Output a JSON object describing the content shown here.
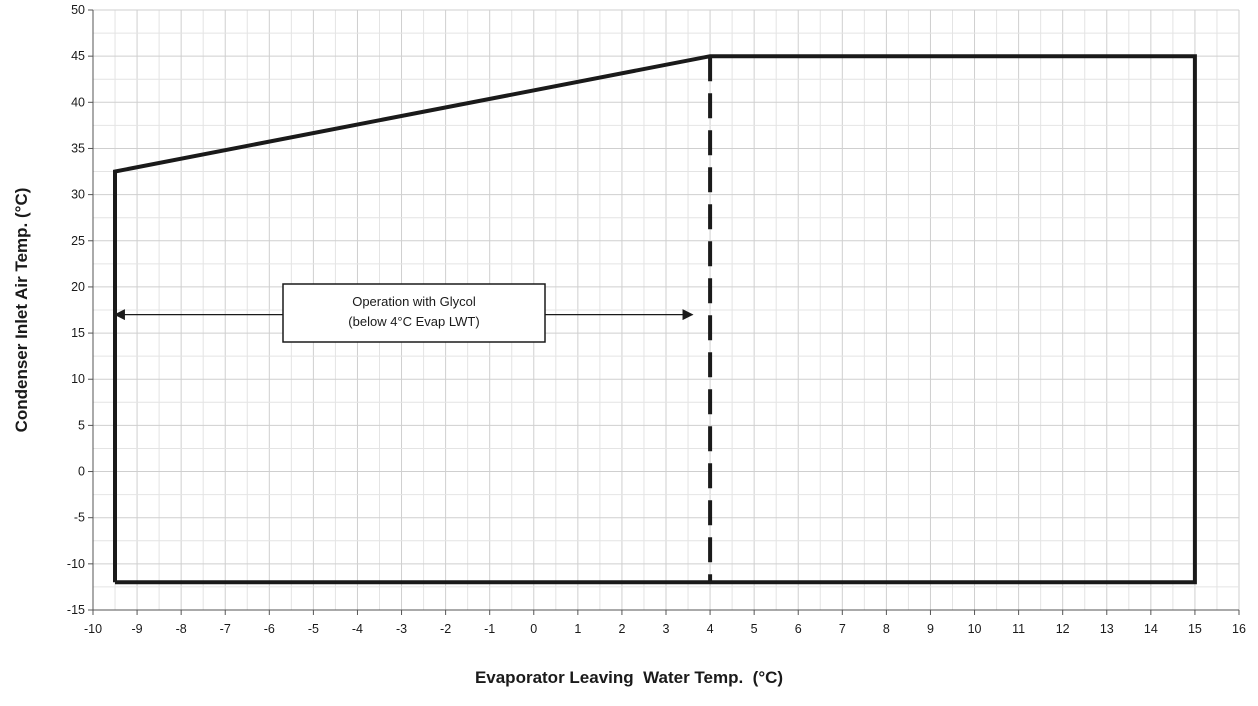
{
  "chart_data": {
    "type": "line",
    "title": "",
    "xlabel": "Evaporator Leaving  Water Temp.  (°C)",
    "ylabel": "Condenser Inlet Air Temp. (°C)",
    "xlim": [
      -10,
      16
    ],
    "ylim": [
      -15,
      50
    ],
    "x_ticks": [
      -10,
      -9,
      -8,
      -7,
      -6,
      -5,
      -4,
      -3,
      -2,
      -1,
      0,
      1,
      2,
      3,
      4,
      5,
      6,
      7,
      8,
      9,
      10,
      11,
      12,
      13,
      14,
      15,
      16
    ],
    "y_ticks": [
      -15,
      -10,
      -5,
      0,
      5,
      10,
      15,
      20,
      25,
      30,
      35,
      40,
      45,
      50
    ],
    "grid": true,
    "series": [
      {
        "style": "solid",
        "color": "#1a1a1a",
        "points": [
          [
            -9.5,
            -12
          ],
          [
            -9.5,
            32.5
          ],
          [
            4,
            45
          ],
          [
            15,
            45
          ],
          [
            15,
            -12
          ],
          [
            -9.5,
            -12
          ]
        ]
      },
      {
        "style": "dashed",
        "color": "#1a1a1a",
        "points": [
          [
            4,
            45
          ],
          [
            4,
            -12
          ]
        ]
      }
    ],
    "annotation": {
      "lines": [
        "Operation with Glycol",
        "(below 4°C Evap LWT)"
      ],
      "arrow_y": 17,
      "arrow_from": -9.5,
      "arrow_to": 3.6
    }
  }
}
